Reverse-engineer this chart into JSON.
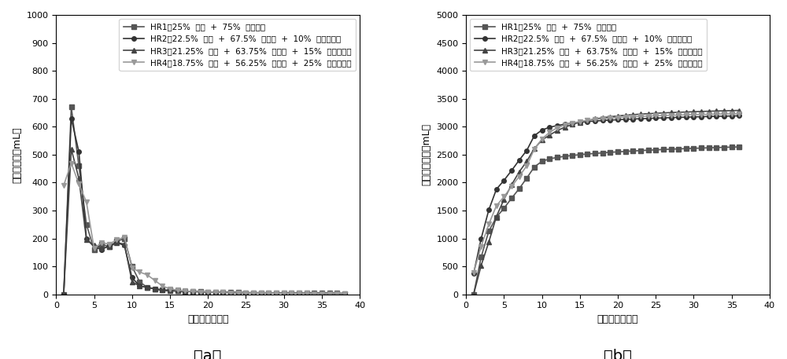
{
  "fig_width": 10.0,
  "fig_height": 4.57,
  "dpi": 100,
  "background_color": "#ffffff",
  "subplot_a": {
    "xlabel": "发酵时间（天）",
    "ylabel": "日沼气产量（mL）",
    "xlim": [
      0,
      40
    ],
    "ylim": [
      0,
      1000
    ],
    "xticks": [
      0,
      5,
      10,
      15,
      20,
      25,
      30,
      35,
      40
    ],
    "yticks": [
      0,
      100,
      200,
      300,
      400,
      500,
      600,
      700,
      800,
      900,
      1000
    ],
    "label_a": "（a）",
    "series": [
      {
        "label": "HR1（25%  牛粪  +  75%  甘蔗叶）",
        "color": "#555555",
        "marker": "s",
        "markersize": 4,
        "linewidth": 1.2,
        "x": [
          1,
          2,
          3,
          4,
          5,
          6,
          7,
          8,
          9,
          10,
          11,
          12,
          13,
          14,
          15,
          16,
          17,
          18,
          19,
          20,
          21,
          22,
          23,
          24,
          25,
          26,
          27,
          28,
          29,
          30,
          31,
          32,
          33,
          34,
          35,
          36,
          37,
          38
        ],
        "y": [
          0,
          670,
          460,
          250,
          160,
          180,
          170,
          190,
          200,
          100,
          45,
          25,
          20,
          15,
          15,
          12,
          10,
          10,
          10,
          8,
          8,
          8,
          7,
          7,
          6,
          6,
          6,
          5,
          5,
          5,
          5,
          5,
          4,
          4,
          4,
          4,
          4,
          3
        ]
      },
      {
        "label": "HR2（22.5%  牛粪  +  67.5%  甘蔗叶  +  10%  餐厨垃圾）",
        "color": "#333333",
        "marker": "o",
        "markersize": 4,
        "linewidth": 1.2,
        "x": [
          1,
          2,
          3,
          4,
          5,
          6,
          7,
          8,
          9,
          10,
          11,
          12,
          13,
          14,
          15,
          16,
          17,
          18,
          19,
          20,
          21,
          22,
          23,
          24,
          25,
          26,
          27,
          28,
          29,
          30,
          31,
          32,
          33,
          34,
          35,
          36,
          37,
          38
        ],
        "y": [
          0,
          630,
          510,
          200,
          170,
          160,
          175,
          185,
          175,
          60,
          30,
          25,
          20,
          15,
          15,
          12,
          10,
          10,
          9,
          8,
          8,
          7,
          7,
          6,
          6,
          5,
          5,
          5,
          5,
          5,
          5,
          4,
          4,
          4,
          4,
          4,
          3,
          3
        ]
      },
      {
        "label": "HR3（21.25%  牛粪  +  63.75%  甘蔗叶  +  15%  餐厨垃圾）",
        "color": "#444444",
        "marker": "^",
        "markersize": 4,
        "linewidth": 1.2,
        "x": [
          1,
          2,
          3,
          4,
          5,
          6,
          7,
          8,
          9,
          10,
          11,
          12,
          13,
          14,
          15,
          16,
          17,
          18,
          19,
          20,
          21,
          22,
          23,
          24,
          25,
          26,
          27,
          28,
          29,
          30,
          31,
          32,
          33,
          34,
          35,
          36,
          37,
          38
        ],
        "y": [
          0,
          520,
          415,
          195,
          175,
          165,
          170,
          185,
          180,
          45,
          30,
          25,
          20,
          15,
          12,
          12,
          10,
          10,
          9,
          8,
          7,
          7,
          6,
          6,
          5,
          5,
          5,
          5,
          5,
          4,
          4,
          4,
          4,
          4,
          3,
          3,
          3,
          3
        ]
      },
      {
        "label": "HR4（18.75%  牛粪  +  56.25%  甘蔗叶  +  25%  餐厨垃圾）",
        "color": "#999999",
        "marker": "v",
        "markersize": 4,
        "linewidth": 1.2,
        "x": [
          1,
          2,
          3,
          4,
          5,
          6,
          7,
          8,
          9,
          10,
          11,
          12,
          13,
          14,
          15,
          16,
          17,
          18,
          19,
          20,
          21,
          22,
          23,
          24,
          25,
          26,
          27,
          28,
          29,
          30,
          31,
          32,
          33,
          34,
          35,
          36,
          37,
          38
        ],
        "y": [
          390,
          470,
          395,
          330,
          165,
          185,
          180,
          195,
          205,
          95,
          80,
          70,
          50,
          30,
          20,
          15,
          12,
          10,
          9,
          8,
          7,
          7,
          6,
          6,
          5,
          5,
          5,
          5,
          4,
          4,
          4,
          4,
          4,
          3,
          3,
          3,
          3,
          3
        ]
      }
    ]
  },
  "subplot_b": {
    "xlabel": "发酵天数（天）",
    "ylabel": "累计沼气产量（mL）",
    "xlim": [
      0,
      40
    ],
    "ylim": [
      0,
      5000
    ],
    "xticks": [
      0,
      5,
      10,
      15,
      20,
      25,
      30,
      35,
      40
    ],
    "yticks": [
      0,
      500,
      1000,
      1500,
      2000,
      2500,
      3000,
      3500,
      4000,
      4500,
      5000
    ],
    "label_b": "（b）",
    "series": [
      {
        "label": "HR1（25%  牛粪  +  75%  甘蔗叶）",
        "color": "#555555",
        "marker": "s",
        "markersize": 4,
        "linewidth": 1.2,
        "x": [
          1,
          2,
          3,
          4,
          5,
          6,
          7,
          8,
          9,
          10,
          11,
          12,
          13,
          14,
          15,
          16,
          17,
          18,
          19,
          20,
          21,
          22,
          23,
          24,
          25,
          26,
          27,
          28,
          29,
          30,
          31,
          32,
          33,
          34,
          35,
          36
        ],
        "y": [
          0,
          670,
          1130,
          1380,
          1540,
          1720,
          1890,
          2080,
          2280,
          2380,
          2425,
          2450,
          2470,
          2485,
          2500,
          2512,
          2522,
          2532,
          2542,
          2550,
          2558,
          2566,
          2573,
          2580,
          2586,
          2592,
          2598,
          2603,
          2608,
          2613,
          2618,
          2623,
          2627,
          2631,
          2635,
          2639
        ]
      },
      {
        "label": "HR2（22.5%  牛粪  +  67.5%  甘蔗叶  +  10%  餐厨垃圾）",
        "color": "#333333",
        "marker": "o",
        "markersize": 4,
        "linewidth": 1.2,
        "x": [
          1,
          2,
          3,
          4,
          5,
          6,
          7,
          8,
          9,
          10,
          11,
          12,
          13,
          14,
          15,
          16,
          17,
          18,
          19,
          20,
          21,
          22,
          23,
          24,
          25,
          26,
          27,
          28,
          29,
          30,
          31,
          32,
          33,
          34,
          35,
          36
        ],
        "y": [
          370,
          1000,
          1510,
          1880,
          2040,
          2215,
          2400,
          2575,
          2840,
          2940,
          2990,
          3020,
          3045,
          3065,
          3080,
          3092,
          3102,
          3110,
          3118,
          3125,
          3131,
          3137,
          3143,
          3148,
          3153,
          3158,
          3163,
          3167,
          3171,
          3175,
          3179,
          3183,
          3186,
          3189,
          3192,
          3195
        ]
      },
      {
        "label": "HR3（21.25%  牛粪  +  63.75%  甘蔗叶  +  15%  餐厨垃圾）",
        "color": "#444444",
        "marker": "^",
        "markersize": 4,
        "linewidth": 1.2,
        "x": [
          1,
          2,
          3,
          4,
          5,
          6,
          7,
          8,
          9,
          10,
          11,
          12,
          13,
          14,
          15,
          16,
          17,
          18,
          19,
          20,
          21,
          22,
          23,
          24,
          25,
          26,
          27,
          28,
          29,
          30,
          31,
          32,
          33,
          34,
          35,
          36
        ],
        "y": [
          0,
          520,
          935,
          1390,
          1700,
          1960,
          2190,
          2380,
          2610,
          2760,
          2850,
          2930,
          2990,
          3040,
          3080,
          3112,
          3138,
          3160,
          3178,
          3193,
          3205,
          3216,
          3225,
          3233,
          3240,
          3247,
          3253,
          3258,
          3263,
          3268,
          3273,
          3277,
          3281,
          3285,
          3288,
          3292
        ]
      },
      {
        "label": "HR4（18.75%  牛粪  +  56.25%  甘蔗叶  +  25%  餐厨垃圾）",
        "color": "#999999",
        "marker": "v",
        "markersize": 4,
        "linewidth": 1.2,
        "x": [
          1,
          2,
          3,
          4,
          5,
          6,
          7,
          8,
          9,
          10,
          11,
          12,
          13,
          14,
          15,
          16,
          17,
          18,
          19,
          20,
          21,
          22,
          23,
          24,
          25,
          26,
          27,
          28,
          29,
          30,
          31,
          32,
          33,
          34,
          35,
          36
        ],
        "y": [
          390,
          860,
          1255,
          1585,
          1748,
          1930,
          2108,
          2300,
          2600,
          2780,
          2900,
          2980,
          3030,
          3065,
          3092,
          3113,
          3130,
          3144,
          3155,
          3164,
          3172,
          3179,
          3185,
          3191,
          3196,
          3201,
          3205,
          3209,
          3213,
          3216,
          3219,
          3222,
          3225,
          3228,
          3230,
          3232
        ]
      }
    ]
  },
  "font_size_label": 9,
  "font_size_tick": 8,
  "font_size_legend": 7.5,
  "font_size_caption": 14
}
